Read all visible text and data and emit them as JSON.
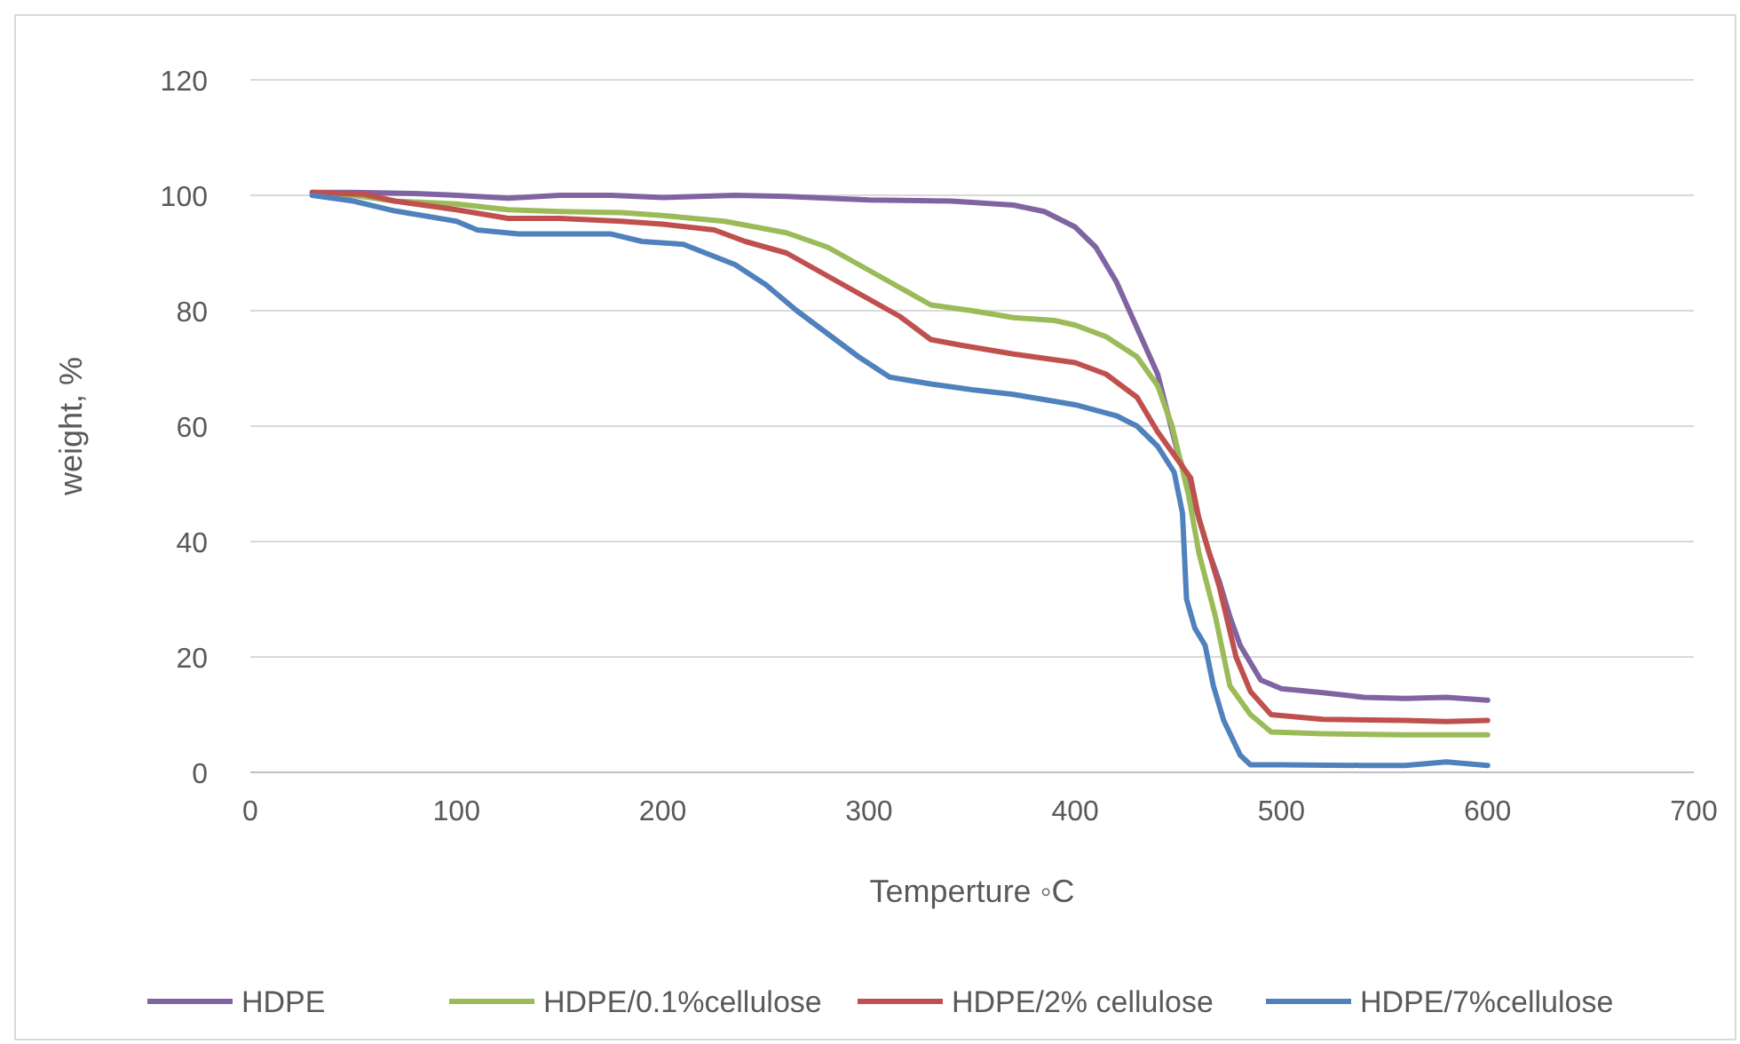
{
  "chart_data": {
    "type": "line",
    "xlabel": "Temperture ◦C",
    "ylabel": "weight, %",
    "xlim": [
      0,
      700
    ],
    "xticks": [
      0,
      100,
      200,
      300,
      400,
      500,
      600,
      700
    ],
    "ylim": [
      0,
      120
    ],
    "yticks": [
      0,
      20,
      40,
      60,
      80,
      100,
      120
    ],
    "grid": "y",
    "legend": "bottom",
    "marker": "none",
    "line_style": "solid",
    "series": [
      {
        "name": "HDPE",
        "color": "#8064a2",
        "x": [
          30,
          50,
          80,
          100,
          125,
          150,
          175,
          200,
          235,
          260,
          300,
          340,
          370,
          385,
          400,
          410,
          420,
          430,
          440,
          445,
          450,
          455,
          460,
          465,
          470,
          475,
          480,
          490,
          500,
          520,
          540,
          560,
          580,
          600
        ],
        "values": [
          100.5,
          100.5,
          100.3,
          100,
          99.5,
          100,
          100,
          99.6,
          100,
          99.8,
          99.2,
          99,
          98.3,
          97.2,
          94.5,
          91,
          85,
          77,
          69,
          62,
          55,
          50,
          44,
          38,
          33,
          27,
          22,
          16,
          14.5,
          13.8,
          13,
          12.8,
          13,
          12.5
        ]
      },
      {
        "name": "HDPE/0.1%cellulose",
        "color": "#9bbb59",
        "x": [
          30,
          50,
          70,
          100,
          125,
          150,
          180,
          200,
          230,
          260,
          280,
          300,
          315,
          330,
          350,
          370,
          390,
          400,
          415,
          430,
          440,
          447,
          455,
          460,
          468,
          475,
          485,
          495,
          520,
          560,
          600
        ],
        "values": [
          100,
          100,
          99,
          98.5,
          97.5,
          97.2,
          97,
          96.5,
          95.5,
          93.5,
          91,
          87,
          84,
          81,
          80,
          78.8,
          78.3,
          77.5,
          75.5,
          72,
          67,
          60,
          48,
          38,
          27,
          15,
          10,
          7,
          6.7,
          6.5,
          6.5
        ]
      },
      {
        "name": "HDPE/2% cellulose",
        "color": "#c0504d",
        "x": [
          30,
          55,
          70,
          100,
          125,
          150,
          180,
          200,
          225,
          240,
          260,
          280,
          300,
          315,
          330,
          345,
          370,
          400,
          415,
          430,
          440,
          450,
          456,
          460,
          465,
          470,
          478,
          485,
          495,
          520,
          560,
          580,
          600
        ],
        "values": [
          100.5,
          100.2,
          99,
          97.5,
          96,
          96,
          95.5,
          95,
          94,
          92,
          90,
          86,
          82,
          79,
          75,
          74,
          72.5,
          71,
          69,
          65,
          59,
          54,
          51,
          44,
          38,
          32,
          20,
          14,
          10,
          9.2,
          9,
          8.8,
          9
        ]
      },
      {
        "name": "HDPE/7%cellulose",
        "color": "#4f81bd",
        "x": [
          30,
          50,
          70,
          100,
          110,
          130,
          150,
          175,
          190,
          210,
          235,
          250,
          265,
          280,
          295,
          310,
          330,
          350,
          370,
          400,
          420,
          430,
          440,
          448,
          452,
          454,
          458,
          463,
          467,
          472,
          480,
          485,
          500,
          540,
          560,
          580,
          600
        ],
        "values": [
          100,
          99,
          97.3,
          95.5,
          94,
          93.3,
          93.3,
          93.3,
          92,
          91.5,
          88,
          84.5,
          80,
          76,
          72,
          68.5,
          67.3,
          66.3,
          65.5,
          63.7,
          61.8,
          60,
          56.5,
          52,
          45,
          30,
          25,
          22,
          15,
          9,
          3,
          1.3,
          1.3,
          1.2,
          1.2,
          1.8,
          1.2
        ]
      }
    ]
  }
}
